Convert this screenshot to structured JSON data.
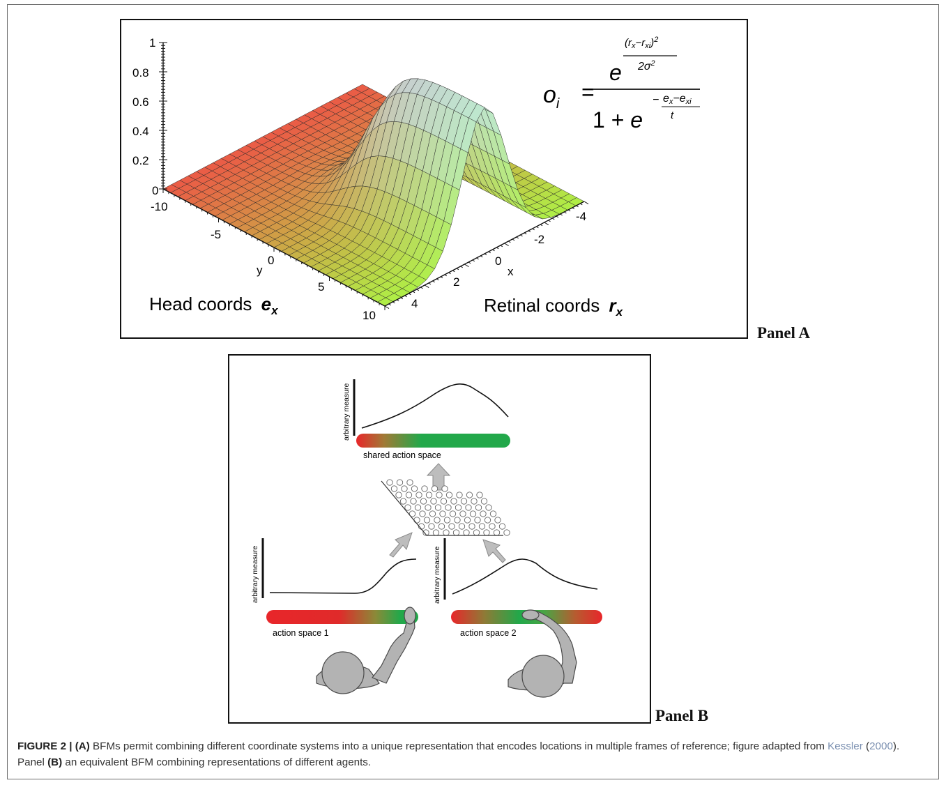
{
  "panel_a": {
    "label": "Panel A",
    "z_ticks": [
      "1",
      "0.8",
      "0.6",
      "0.4",
      "0.2",
      "0"
    ],
    "y_ticks": [
      "-10",
      "-5",
      "0",
      "5",
      "10"
    ],
    "y_axis_letter": "y",
    "x_ticks": [
      "-4",
      "-2",
      "0",
      "2",
      "4"
    ],
    "x_axis_letter": "x",
    "head_label": "Head coords",
    "head_symbol": "e",
    "head_sub": "x",
    "retinal_label": "Retinal coords",
    "retinal_symbol": "r",
    "retinal_sub": "x",
    "formula": {
      "lhs": "o",
      "lhs_sub": "i",
      "equals": "=",
      "num_base": "e",
      "num_exp_top": "(r",
      "num_exp_top_sub1": "x",
      "num_exp_top_minus": "−r",
      "num_exp_top_sub2": "xi",
      "num_exp_top_close": ")",
      "num_exp_top_pow": "2",
      "num_exp_bottom": "2σ",
      "num_exp_bottom_pow": "2",
      "den_one": "1 + ",
      "den_base": "e",
      "den_exp_minus": "−",
      "den_exp_top": "e",
      "den_exp_top_sub1": "x",
      "den_exp_top_minus": "−e",
      "den_exp_top_sub2": "xi",
      "den_exp_bottom": "t"
    }
  },
  "panel_b": {
    "label": "Panel B",
    "ylabel": "arbitrary measure",
    "top_label": "shared action space",
    "left_label": "action space 1",
    "right_label": "action space 2",
    "colors": {
      "red": "#e8262a",
      "green": "#22a84a",
      "gray": "#b3b3b3"
    }
  },
  "caption": {
    "fig": "FIGURE 2 | ",
    "a_mark": "(A)",
    "text1": " BFMs permit combining different coordinate systems into a unique representation that encodes locations in multiple frames of reference; figure adapted from ",
    "cite_author": "Kessler",
    "paren_open": " (",
    "cite_year": "2000",
    "text2": "). Panel ",
    "b_mark": "(B)",
    "text3": " an equivalent BFM combining representations of different agents."
  }
}
